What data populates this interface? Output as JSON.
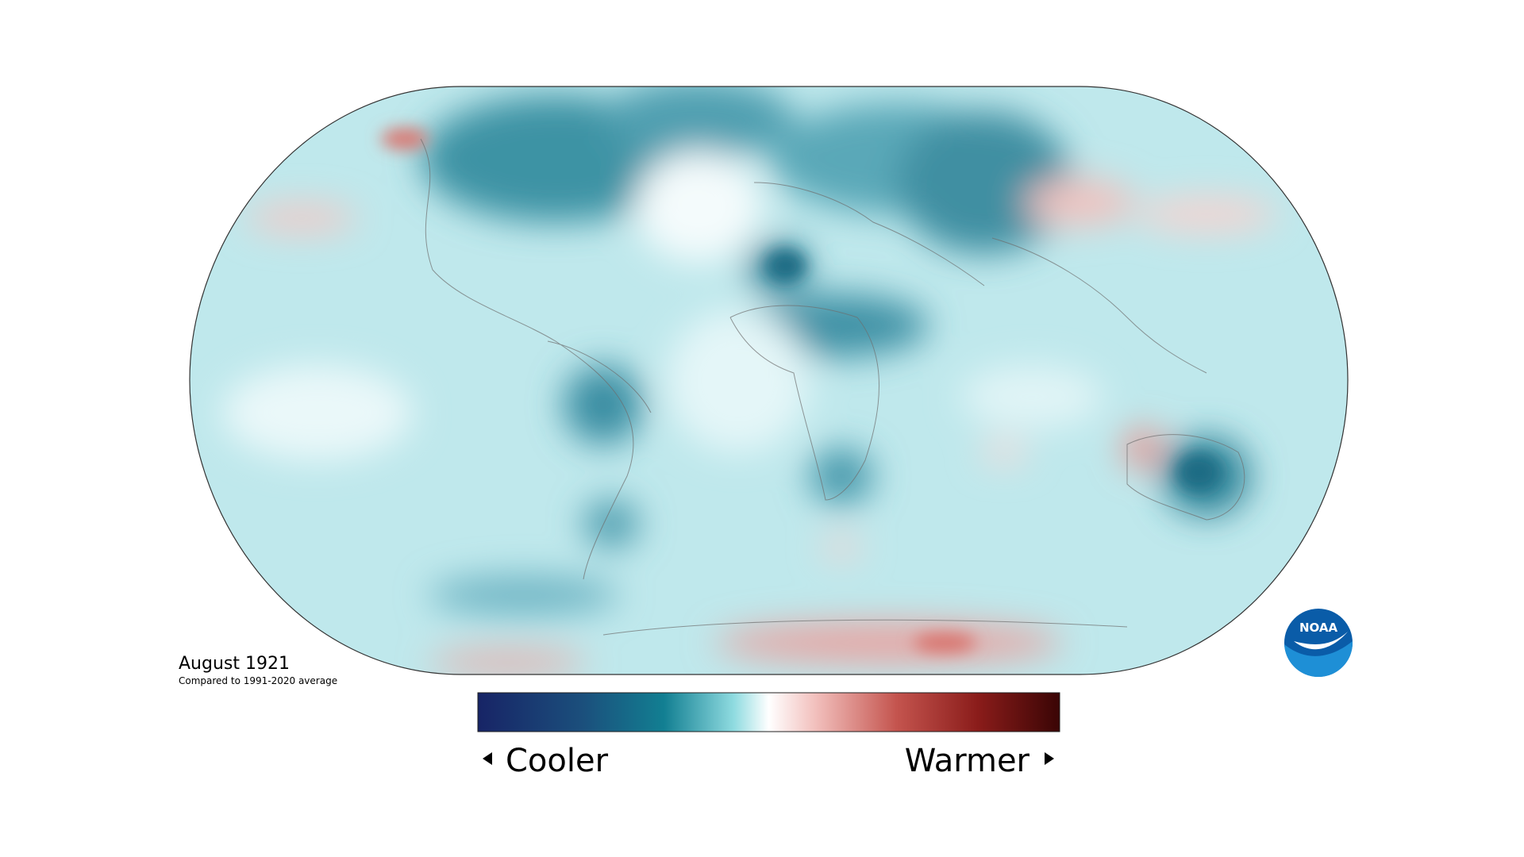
{
  "map": {
    "title": "August 1921",
    "subtitle": "Compared to 1991-2020 average"
  },
  "legend": {
    "low_label": "Cooler",
    "high_label": "Warmer"
  },
  "logo": {
    "text": "NOAA"
  }
}
